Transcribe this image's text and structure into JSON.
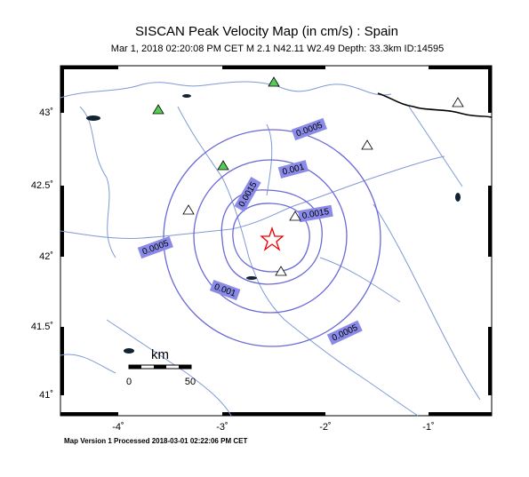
{
  "map": {
    "title": "SISCAN Peak Velocity Map (in cm/s) : Spain",
    "subtitle": "Mar  1, 2018 02:20:08 PM CET    M 2.1    N42.11 W2.49    Depth: 33.3km    ID:14595",
    "lat_labels": [
      "43˚",
      "42.5˚",
      "42˚",
      "41.5˚",
      "41˚"
    ],
    "lon_labels": [
      "-4˚",
      "-3˚",
      "-2˚",
      "-1˚"
    ],
    "contour_labels": [
      "0.0005",
      "0.001",
      "0.0015",
      "0.0015",
      "0.0005",
      "0.001",
      "0.0005"
    ],
    "scale": {
      "unit": "km",
      "labels": [
        "0",
        "50"
      ]
    },
    "footer": "Map Version 1 Processed 2018-03-01 02:22:06 PM CET"
  }
}
